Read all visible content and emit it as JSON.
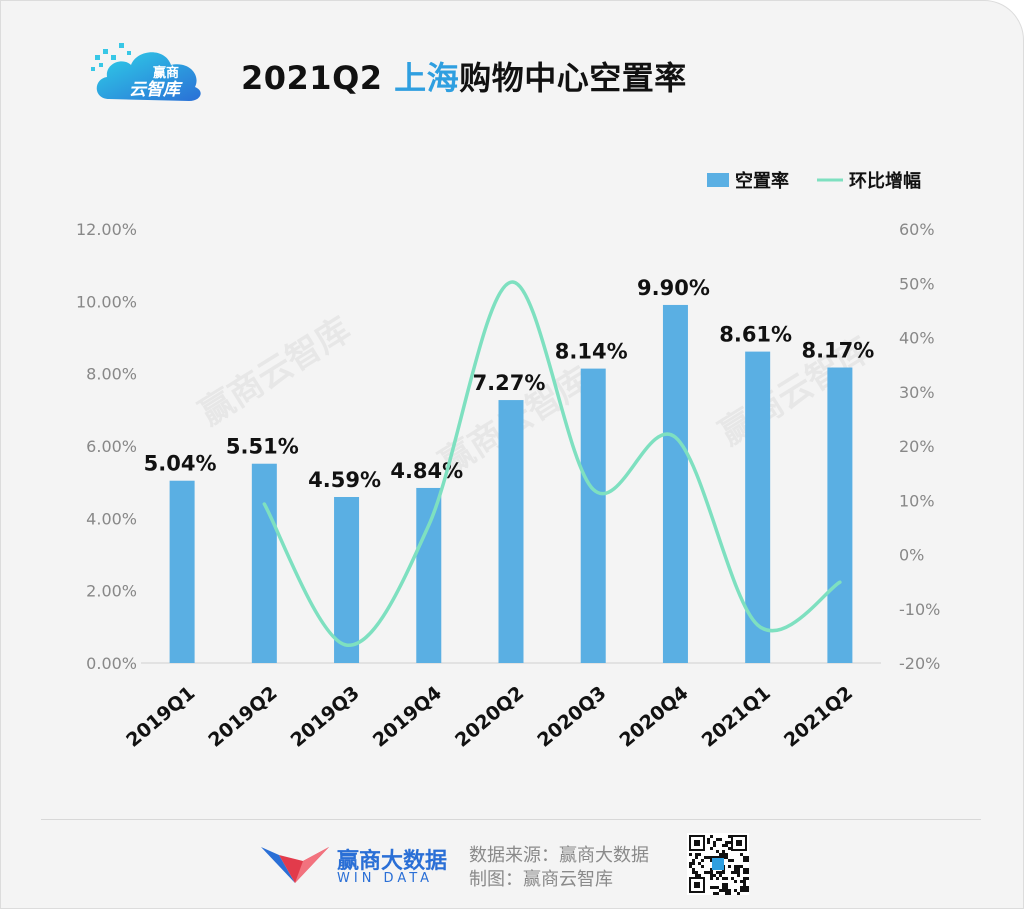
{
  "header": {
    "logo_text_top": "赢商",
    "logo_text_bottom": "云智库",
    "title_prefix": "2021Q2 ",
    "title_highlight": "上海",
    "title_suffix": "购物中心空置率"
  },
  "chart_data": {
    "type": "bar",
    "categories": [
      "2019Q1",
      "2019Q2",
      "2019Q3",
      "2019Q4",
      "2020Q2",
      "2020Q3",
      "2020Q4",
      "2021Q1",
      "2021Q2"
    ],
    "series": [
      {
        "name": "空置率",
        "type": "bar",
        "axis": "left",
        "color": "#5aafe3",
        "values": [
          5.04,
          5.51,
          4.59,
          4.84,
          7.27,
          8.14,
          9.9,
          8.61,
          8.17
        ],
        "labels": [
          "5.04%",
          "5.51%",
          "4.59%",
          "4.84%",
          "7.27%",
          "8.14%",
          "9.90%",
          "8.61%",
          "8.17%"
        ]
      },
      {
        "name": "环比增幅",
        "type": "line",
        "axis": "right",
        "color": "#7ee0c0",
        "values": [
          null,
          9.3,
          -16.7,
          5.4,
          50.2,
          12.0,
          21.6,
          -13.0,
          -5.1
        ]
      }
    ],
    "y_left": {
      "min": 0,
      "max": 12,
      "step": 2,
      "tick_labels": [
        "0.00%",
        "2.00%",
        "4.00%",
        "6.00%",
        "8.00%",
        "10.00%",
        "12.00%"
      ]
    },
    "y_right": {
      "min": -20,
      "max": 60,
      "step": 10,
      "tick_labels": [
        "-20%",
        "-10%",
        "0%",
        "10%",
        "20%",
        "30%",
        "40%",
        "50%",
        "60%"
      ]
    },
    "legend": {
      "position": "top-right",
      "items": [
        "空置率",
        "环比增幅"
      ]
    },
    "grid": false,
    "watermark": "赢商云智库"
  },
  "footer": {
    "brand_name": "赢商大数据",
    "brand_sub": "WIN DATA",
    "source_line": "数据来源：赢商大数据",
    "made_by_line": "制图：赢商云智库"
  }
}
